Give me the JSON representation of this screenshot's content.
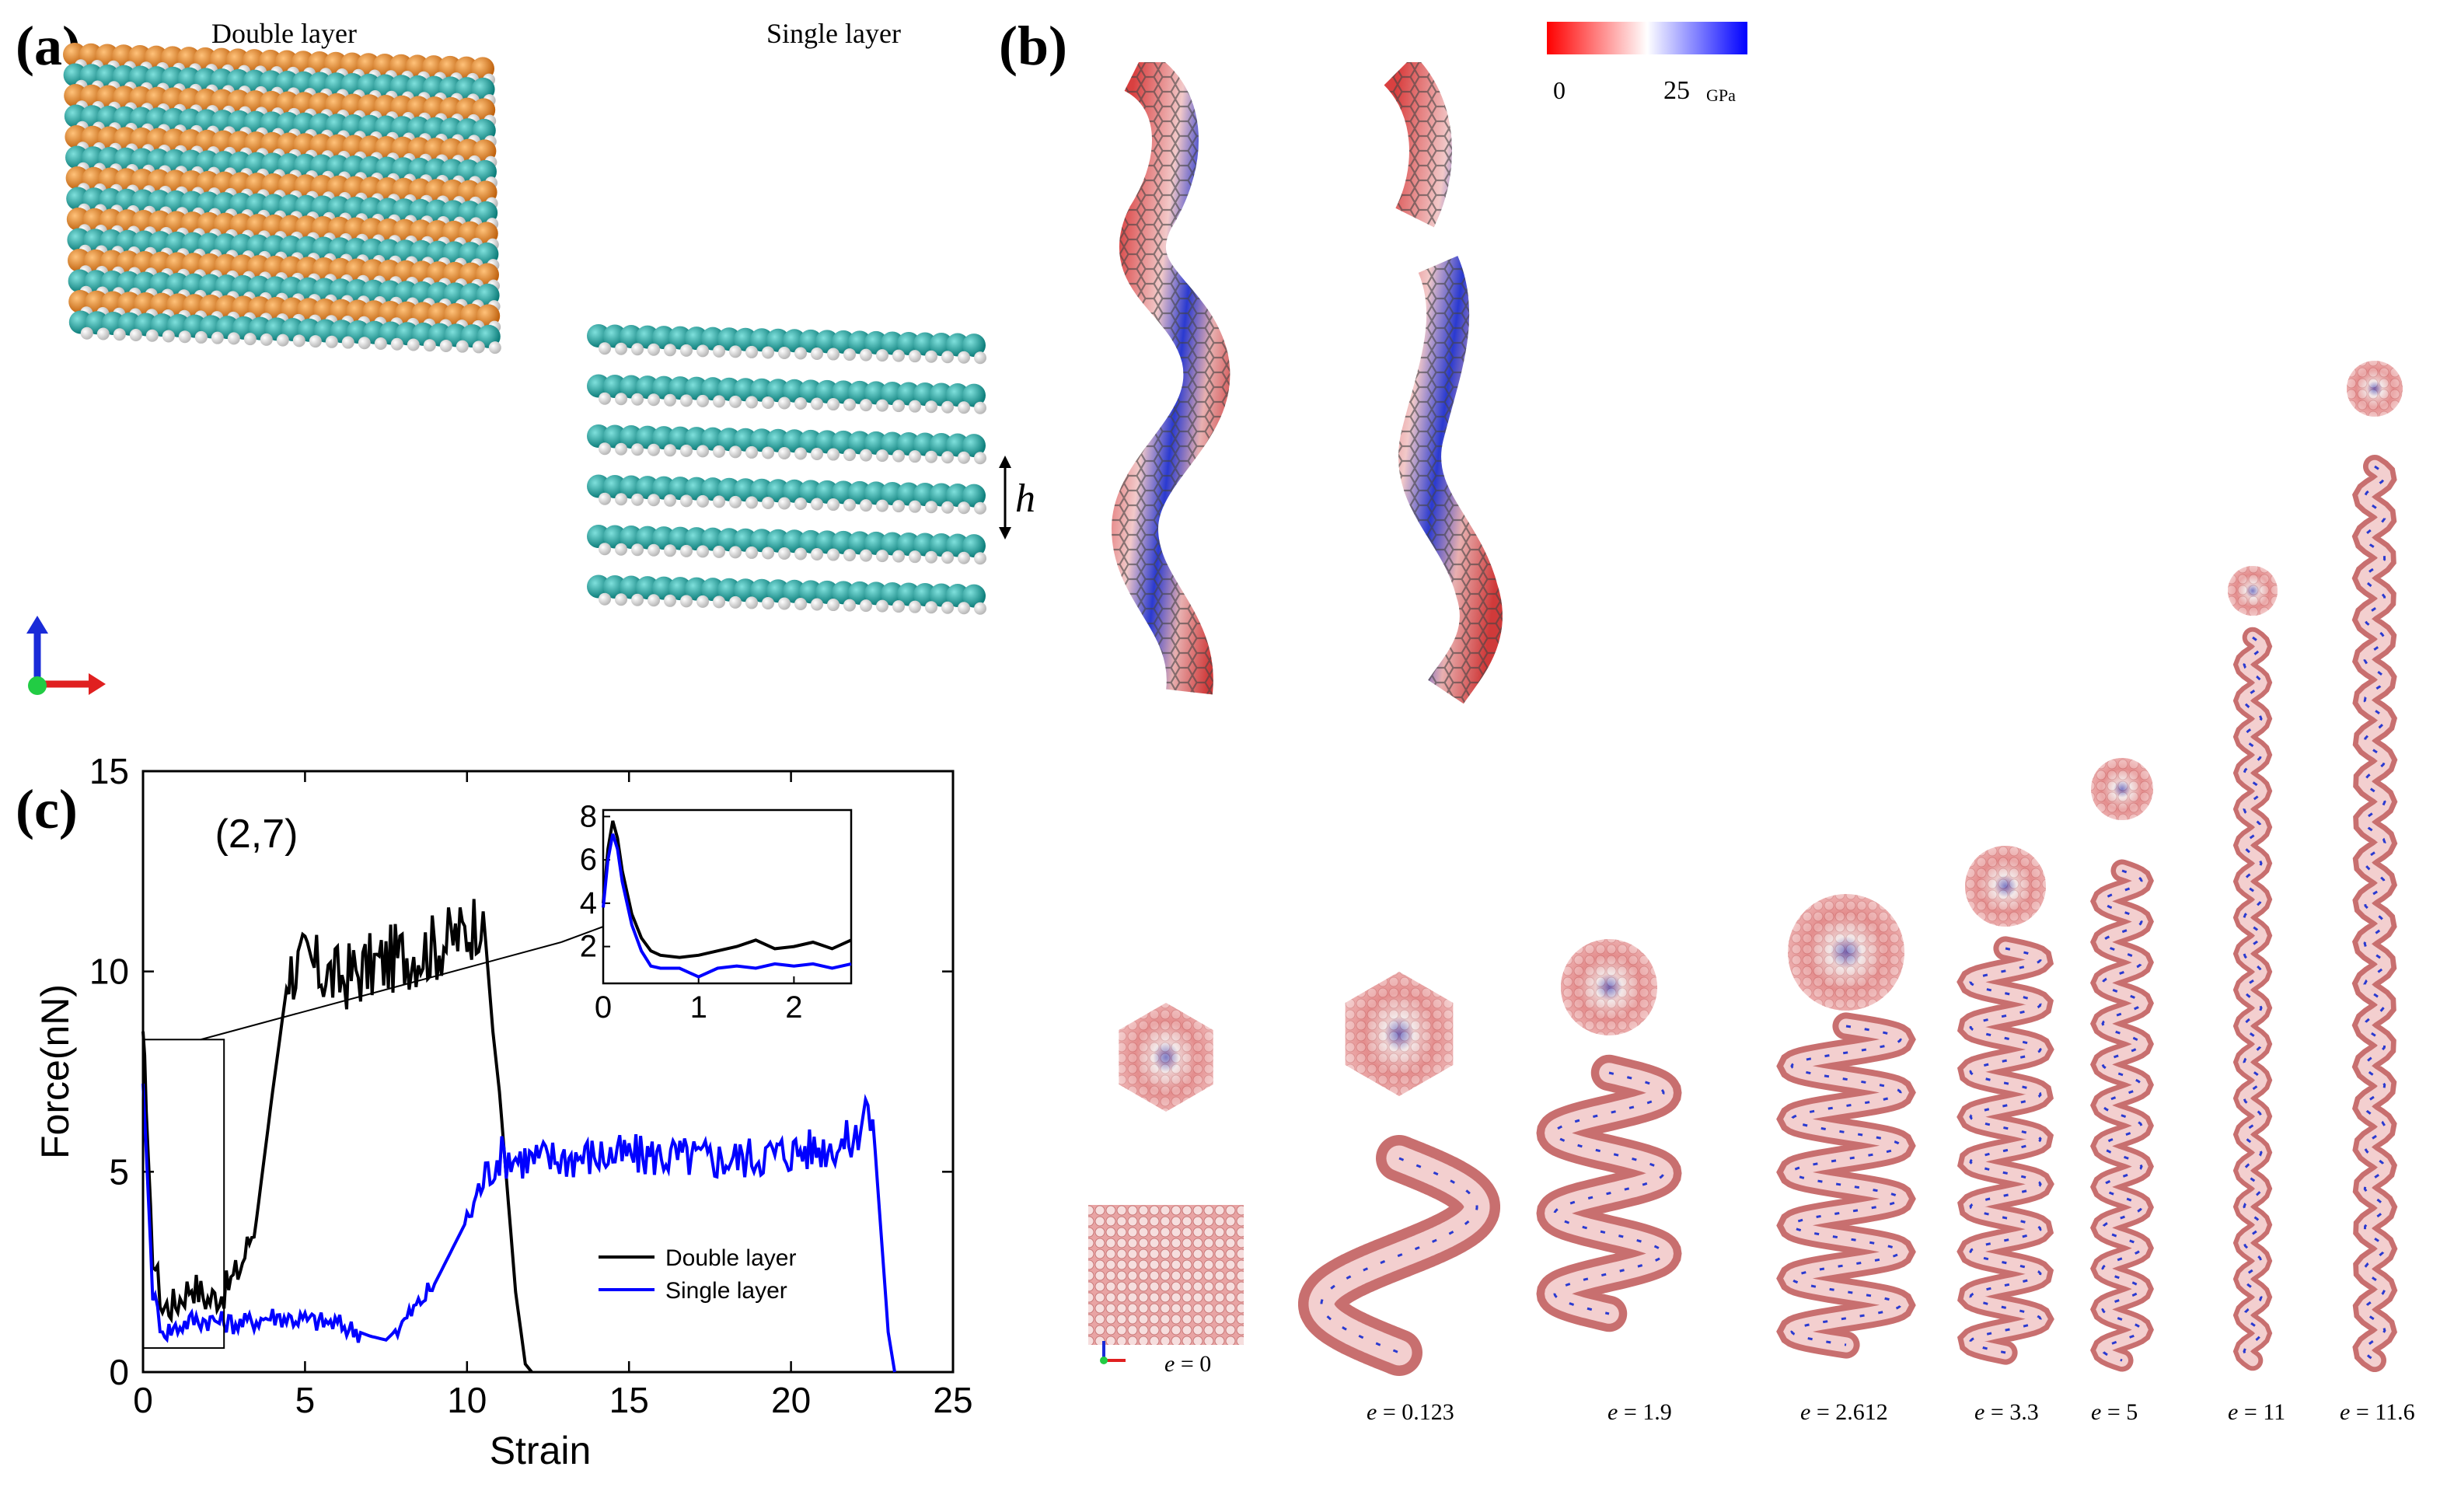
{
  "panels": {
    "a": {
      "label": "(a)",
      "double_title": "Double layer",
      "single_title": "Single layer",
      "h_label": "h",
      "colors": {
        "orange": "#e8821e",
        "teal": "#18a8a4",
        "white": "#f2f2f2"
      }
    },
    "b": {
      "label": "(b)",
      "colorbar": {
        "min_label": "0",
        "max_label": "25",
        "unit": "GPa",
        "low_color": "#ff0000",
        "mid_color": "#ffffff",
        "high_color": "#0000ff"
      },
      "strains": [
        {
          "prefix": "e",
          "value": "= 0"
        },
        {
          "prefix": "e",
          "value": "= 0.123"
        },
        {
          "prefix": "e",
          "value": "= 1.9"
        },
        {
          "prefix": "e",
          "value": "= 2.612"
        },
        {
          "prefix": "e",
          "value": "= 3.3"
        },
        {
          "prefix": "e",
          "value": "= 5"
        },
        {
          "prefix": "e",
          "value": "= 11"
        },
        {
          "prefix": "e",
          "value": "= 11.6"
        }
      ]
    },
    "c": {
      "label": "(c)"
    }
  },
  "chart_data": {
    "type": "line",
    "title": "(2,7)",
    "xlabel": "Strain",
    "ylabel": "Force(nN)",
    "xlim": [
      0,
      25
    ],
    "ylim": [
      0,
      15
    ],
    "xticks": [
      "0",
      "5",
      "10",
      "15",
      "20",
      "25"
    ],
    "yticks": [
      "0",
      "5",
      "10",
      "15"
    ],
    "legend_position": "bottom-right",
    "series": [
      {
        "name": "Double layer",
        "color": "#000000",
        "x": [
          0,
          0.1,
          0.3,
          0.6,
          1.0,
          1.5,
          2.0,
          2.5,
          3.0,
          3.5,
          4.0,
          4.5,
          5.0,
          6.0,
          7.0,
          8.0,
          9.0,
          10.0,
          10.5,
          10.8,
          11.0,
          11.2,
          11.5,
          11.8,
          12.0
        ],
        "y": [
          7.8,
          6.5,
          3.0,
          1.6,
          1.7,
          2.2,
          1.8,
          2.0,
          2.6,
          3.8,
          7.0,
          10.0,
          10.2,
          9.8,
          10.1,
          10.4,
          10.6,
          11.0,
          11.5,
          8.5,
          7.0,
          5.0,
          2.0,
          0.2,
          0.0
        ]
      },
      {
        "name": "Single layer",
        "color": "#0000ff",
        "x": [
          0,
          0.1,
          0.3,
          0.6,
          1.0,
          1.5,
          2.0,
          3.0,
          4.0,
          5.0,
          6.0,
          7.0,
          7.5,
          8.0,
          9.0,
          10.0,
          10.5,
          11.0,
          12.0,
          14.0,
          16.0,
          18.0,
          20.0,
          21.0,
          22.0,
          22.3,
          22.6,
          23.0,
          23.2
        ],
        "y": [
          7.2,
          5.5,
          2.0,
          1.0,
          1.1,
          1.3,
          1.3,
          1.2,
          1.4,
          1.3,
          1.2,
          0.9,
          0.8,
          1.2,
          2.2,
          3.8,
          4.8,
          5.4,
          5.3,
          5.4,
          5.4,
          5.3,
          5.5,
          5.6,
          5.8,
          6.8,
          5.5,
          1.0,
          0.0
        ]
      }
    ],
    "inset": {
      "xlim": [
        0,
        2.6
      ],
      "ylim": [
        0.3,
        8.3
      ],
      "xticks": [
        "0",
        "1",
        "2"
      ],
      "yticks": [
        "2",
        "4",
        "6",
        "8"
      ],
      "series": [
        {
          "name": "Double layer",
          "color": "#000000",
          "x": [
            0,
            0.05,
            0.1,
            0.15,
            0.2,
            0.3,
            0.4,
            0.5,
            0.6,
            0.8,
            1.0,
            1.2,
            1.4,
            1.6,
            1.8,
            2.0,
            2.2,
            2.4,
            2.6
          ],
          "y": [
            4.0,
            6.5,
            7.8,
            7.0,
            5.5,
            3.5,
            2.4,
            1.8,
            1.6,
            1.5,
            1.6,
            1.8,
            2.0,
            2.3,
            1.9,
            2.0,
            2.2,
            1.9,
            2.3
          ]
        },
        {
          "name": "Single layer",
          "color": "#0000ff",
          "x": [
            0,
            0.05,
            0.1,
            0.15,
            0.2,
            0.3,
            0.4,
            0.5,
            0.6,
            0.8,
            1.0,
            1.2,
            1.4,
            1.6,
            1.8,
            2.0,
            2.2,
            2.4,
            2.6
          ],
          "y": [
            3.8,
            6.0,
            7.2,
            6.5,
            5.0,
            3.0,
            1.8,
            1.1,
            1.0,
            1.0,
            0.6,
            1.0,
            1.1,
            1.0,
            1.2,
            1.1,
            1.2,
            1.0,
            1.2
          ]
        }
      ]
    }
  }
}
